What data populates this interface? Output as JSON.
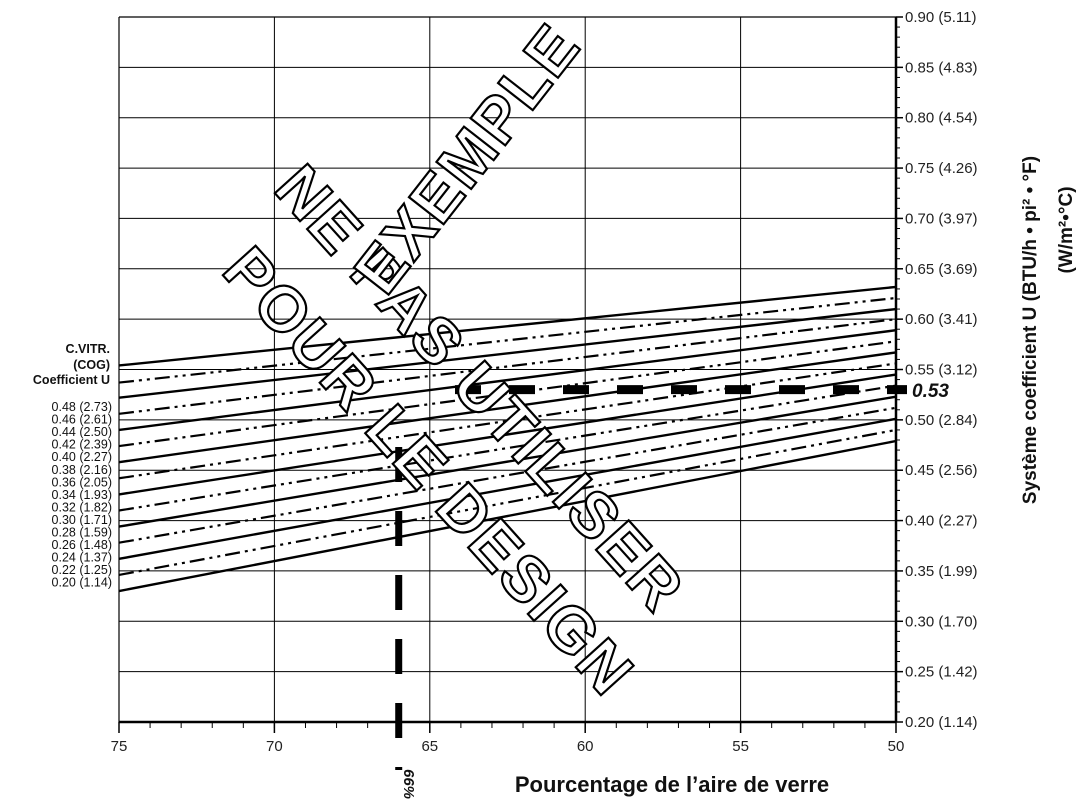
{
  "chart_data": {
    "type": "line",
    "xlabel": "Pourcentage de l’aire de verre",
    "ylabel": "Système coefficient U (BTU/h • pi² • °F)",
    "ylabel2": "(W/m²•°C)",
    "xlim": [
      75,
      50
    ],
    "ylim": [
      0.2,
      0.9
    ],
    "x_ticks": [
      "75",
      "70",
      "65",
      "60",
      "55",
      "50"
    ],
    "y_ticks": [
      {
        "value": 0.9,
        "label": "0.90 (5.11)"
      },
      {
        "value": 0.85,
        "label": "0.85 (4.83)"
      },
      {
        "value": 0.8,
        "label": "0.80 (4.54)"
      },
      {
        "value": 0.75,
        "label": "0.75 (4.26)"
      },
      {
        "value": 0.7,
        "label": "0.70 (3.97)"
      },
      {
        "value": 0.65,
        "label": "0.65 (3.69)"
      },
      {
        "value": 0.6,
        "label": "0.60 (3.41)"
      },
      {
        "value": 0.55,
        "label": "0.55 (3.12)"
      },
      {
        "value": 0.5,
        "label": "0.50 (2.84)"
      },
      {
        "value": 0.45,
        "label": "0.45 (2.56)"
      },
      {
        "value": 0.4,
        "label": "0.40 (2.27)"
      },
      {
        "value": 0.35,
        "label": "0.35 (1.99)"
      },
      {
        "value": 0.3,
        "label": "0.30 (1.70)"
      },
      {
        "value": 0.25,
        "label": "0.25 (1.42)"
      },
      {
        "value": 0.2,
        "label": "0.20 (1.14)"
      }
    ],
    "cog_title": [
      "C.VITR.",
      "(COG)",
      "Coefficient U"
    ],
    "series": [
      {
        "name": "0.48 (2.73)",
        "style": "solid",
        "values": [
          0.554,
          0.632
        ]
      },
      {
        "name": "0.46 (2.61)",
        "style": "dashdotdot",
        "values": [
          0.537,
          0.621
        ]
      },
      {
        "name": "0.44 (2.50)",
        "style": "solid",
        "values": [
          0.522,
          0.61
        ]
      },
      {
        "name": "0.42 (2.39)",
        "style": "dashdotdot",
        "values": [
          0.506,
          0.6
        ]
      },
      {
        "name": "0.40 (2.27)",
        "style": "solid",
        "values": [
          0.49,
          0.589
        ]
      },
      {
        "name": "0.38 (2.16)",
        "style": "dashdotdot",
        "values": [
          0.474,
          0.578
        ]
      },
      {
        "name": "0.36 (2.05)",
        "style": "solid",
        "values": [
          0.458,
          0.567
        ]
      },
      {
        "name": "0.34 (1.93)",
        "style": "dashdotdot",
        "values": [
          0.442,
          0.556
        ]
      },
      {
        "name": "0.32 (1.82)",
        "style": "solid",
        "values": [
          0.426,
          0.545
        ]
      },
      {
        "name": "0.30 (1.71)",
        "style": "dashdotdot",
        "values": [
          0.41,
          0.534
        ]
      },
      {
        "name": "0.28 (1.59)",
        "style": "solid",
        "values": [
          0.394,
          0.523
        ]
      },
      {
        "name": "0.26 (1.48)",
        "style": "dashdotdot",
        "values": [
          0.378,
          0.512
        ]
      },
      {
        "name": "0.24 (1.37)",
        "style": "solid",
        "values": [
          0.362,
          0.501
        ]
      },
      {
        "name": "0.22 (1.25)",
        "style": "dashdotdot",
        "values": [
          0.346,
          0.49
        ]
      },
      {
        "name": "0.20 (1.14)",
        "style": "solid",
        "values": [
          0.33,
          0.479
        ]
      }
    ],
    "reference": {
      "u_value": 0.53,
      "u_label": "0.53",
      "glass_pct": 66,
      "glass_label": "66%"
    },
    "grid": true,
    "watermark": [
      "NE PAS UTILISER",
      "POUR LE DESIGN",
      "EXEMPLE"
    ]
  }
}
